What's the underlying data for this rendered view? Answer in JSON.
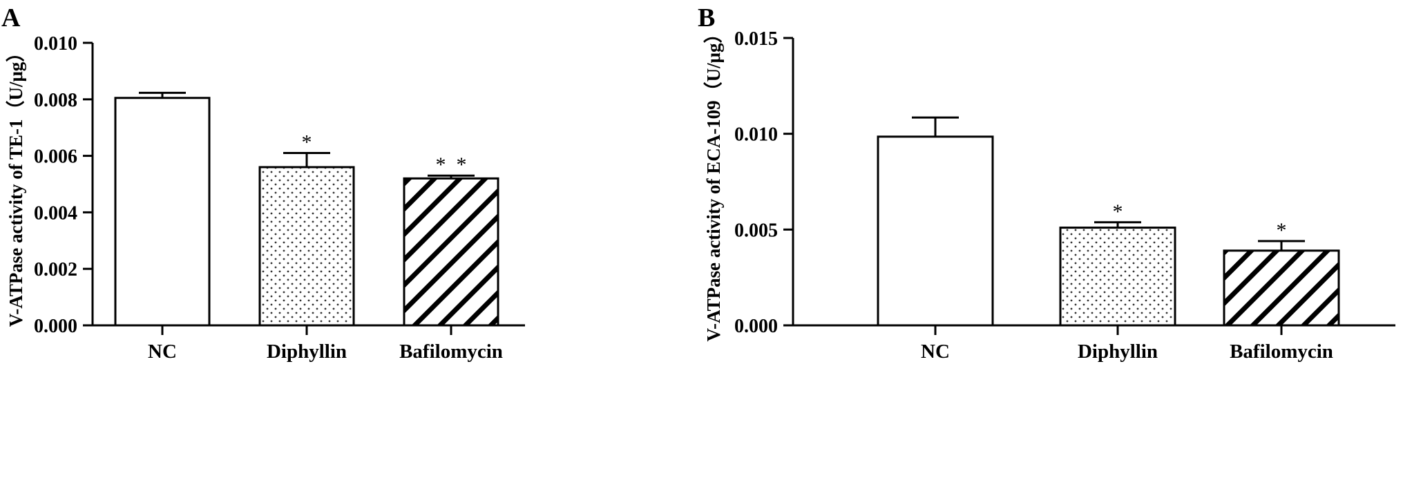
{
  "chart_data": [
    {
      "type": "bar",
      "panel_label": "A",
      "ylabel": "V-ATPase  activity of TE-1（U/μg）",
      "categories": [
        "NC",
        "Diphyllin",
        "Bafilomycin"
      ],
      "values": [
        0.00805,
        0.0056,
        0.0052
      ],
      "errors": [
        0.00018,
        0.0005,
        0.0001
      ],
      "annotations": [
        "",
        "*",
        "*  *"
      ],
      "patterns": [
        "none",
        "dots",
        "hatch"
      ],
      "ylim": [
        0,
        0.01
      ],
      "yticks": [
        "0.000",
        "0.002",
        "0.004",
        "0.006",
        "0.008",
        "0.010"
      ],
      "ytick_values": [
        0,
        0.002,
        0.004,
        0.006,
        0.008,
        0.01
      ],
      "grid": false
    },
    {
      "type": "bar",
      "panel_label": "B",
      "ylabel": "V-ATPase  activity of ECA-109（U/μg）",
      "categories": [
        "NC",
        "Diphyllin",
        "Bafilomycin"
      ],
      "values": [
        0.00985,
        0.0051,
        0.0039
      ],
      "errors": [
        0.001,
        0.00028,
        0.0005
      ],
      "annotations": [
        "",
        "*",
        "*"
      ],
      "patterns": [
        "none",
        "dots",
        "hatch"
      ],
      "ylim": [
        0,
        0.015
      ],
      "yticks": [
        "0.000",
        "0.005",
        "0.010",
        "0.015"
      ],
      "ytick_values": [
        0,
        0.005,
        0.01,
        0.015
      ],
      "grid": false
    }
  ]
}
